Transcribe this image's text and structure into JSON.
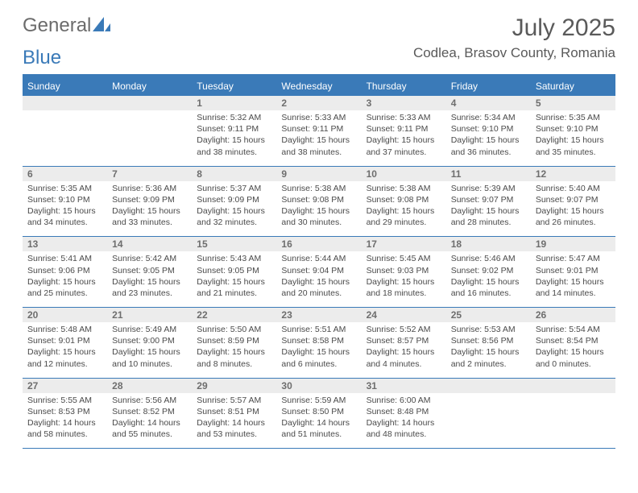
{
  "brand": {
    "word1": "General",
    "word2": "Blue"
  },
  "title": "July 2025",
  "location": "Codlea, Brasov County, Romania",
  "colors": {
    "accent": "#3a7ab8",
    "dayBg": "#ececec",
    "text": "#4a4a4a",
    "titleText": "#5a5a5a"
  },
  "dayNames": [
    "Sunday",
    "Monday",
    "Tuesday",
    "Wednesday",
    "Thursday",
    "Friday",
    "Saturday"
  ],
  "weeks": [
    [
      null,
      null,
      {
        "n": "1",
        "sr": "Sunrise: 5:32 AM",
        "ss": "Sunset: 9:11 PM",
        "dl": "Daylight: 15 hours and 38 minutes."
      },
      {
        "n": "2",
        "sr": "Sunrise: 5:33 AM",
        "ss": "Sunset: 9:11 PM",
        "dl": "Daylight: 15 hours and 38 minutes."
      },
      {
        "n": "3",
        "sr": "Sunrise: 5:33 AM",
        "ss": "Sunset: 9:11 PM",
        "dl": "Daylight: 15 hours and 37 minutes."
      },
      {
        "n": "4",
        "sr": "Sunrise: 5:34 AM",
        "ss": "Sunset: 9:10 PM",
        "dl": "Daylight: 15 hours and 36 minutes."
      },
      {
        "n": "5",
        "sr": "Sunrise: 5:35 AM",
        "ss": "Sunset: 9:10 PM",
        "dl": "Daylight: 15 hours and 35 minutes."
      }
    ],
    [
      {
        "n": "6",
        "sr": "Sunrise: 5:35 AM",
        "ss": "Sunset: 9:10 PM",
        "dl": "Daylight: 15 hours and 34 minutes."
      },
      {
        "n": "7",
        "sr": "Sunrise: 5:36 AM",
        "ss": "Sunset: 9:09 PM",
        "dl": "Daylight: 15 hours and 33 minutes."
      },
      {
        "n": "8",
        "sr": "Sunrise: 5:37 AM",
        "ss": "Sunset: 9:09 PM",
        "dl": "Daylight: 15 hours and 32 minutes."
      },
      {
        "n": "9",
        "sr": "Sunrise: 5:38 AM",
        "ss": "Sunset: 9:08 PM",
        "dl": "Daylight: 15 hours and 30 minutes."
      },
      {
        "n": "10",
        "sr": "Sunrise: 5:38 AM",
        "ss": "Sunset: 9:08 PM",
        "dl": "Daylight: 15 hours and 29 minutes."
      },
      {
        "n": "11",
        "sr": "Sunrise: 5:39 AM",
        "ss": "Sunset: 9:07 PM",
        "dl": "Daylight: 15 hours and 28 minutes."
      },
      {
        "n": "12",
        "sr": "Sunrise: 5:40 AM",
        "ss": "Sunset: 9:07 PM",
        "dl": "Daylight: 15 hours and 26 minutes."
      }
    ],
    [
      {
        "n": "13",
        "sr": "Sunrise: 5:41 AM",
        "ss": "Sunset: 9:06 PM",
        "dl": "Daylight: 15 hours and 25 minutes."
      },
      {
        "n": "14",
        "sr": "Sunrise: 5:42 AM",
        "ss": "Sunset: 9:05 PM",
        "dl": "Daylight: 15 hours and 23 minutes."
      },
      {
        "n": "15",
        "sr": "Sunrise: 5:43 AM",
        "ss": "Sunset: 9:05 PM",
        "dl": "Daylight: 15 hours and 21 minutes."
      },
      {
        "n": "16",
        "sr": "Sunrise: 5:44 AM",
        "ss": "Sunset: 9:04 PM",
        "dl": "Daylight: 15 hours and 20 minutes."
      },
      {
        "n": "17",
        "sr": "Sunrise: 5:45 AM",
        "ss": "Sunset: 9:03 PM",
        "dl": "Daylight: 15 hours and 18 minutes."
      },
      {
        "n": "18",
        "sr": "Sunrise: 5:46 AM",
        "ss": "Sunset: 9:02 PM",
        "dl": "Daylight: 15 hours and 16 minutes."
      },
      {
        "n": "19",
        "sr": "Sunrise: 5:47 AM",
        "ss": "Sunset: 9:01 PM",
        "dl": "Daylight: 15 hours and 14 minutes."
      }
    ],
    [
      {
        "n": "20",
        "sr": "Sunrise: 5:48 AM",
        "ss": "Sunset: 9:01 PM",
        "dl": "Daylight: 15 hours and 12 minutes."
      },
      {
        "n": "21",
        "sr": "Sunrise: 5:49 AM",
        "ss": "Sunset: 9:00 PM",
        "dl": "Daylight: 15 hours and 10 minutes."
      },
      {
        "n": "22",
        "sr": "Sunrise: 5:50 AM",
        "ss": "Sunset: 8:59 PM",
        "dl": "Daylight: 15 hours and 8 minutes."
      },
      {
        "n": "23",
        "sr": "Sunrise: 5:51 AM",
        "ss": "Sunset: 8:58 PM",
        "dl": "Daylight: 15 hours and 6 minutes."
      },
      {
        "n": "24",
        "sr": "Sunrise: 5:52 AM",
        "ss": "Sunset: 8:57 PM",
        "dl": "Daylight: 15 hours and 4 minutes."
      },
      {
        "n": "25",
        "sr": "Sunrise: 5:53 AM",
        "ss": "Sunset: 8:56 PM",
        "dl": "Daylight: 15 hours and 2 minutes."
      },
      {
        "n": "26",
        "sr": "Sunrise: 5:54 AM",
        "ss": "Sunset: 8:54 PM",
        "dl": "Daylight: 15 hours and 0 minutes."
      }
    ],
    [
      {
        "n": "27",
        "sr": "Sunrise: 5:55 AM",
        "ss": "Sunset: 8:53 PM",
        "dl": "Daylight: 14 hours and 58 minutes."
      },
      {
        "n": "28",
        "sr": "Sunrise: 5:56 AM",
        "ss": "Sunset: 8:52 PM",
        "dl": "Daylight: 14 hours and 55 minutes."
      },
      {
        "n": "29",
        "sr": "Sunrise: 5:57 AM",
        "ss": "Sunset: 8:51 PM",
        "dl": "Daylight: 14 hours and 53 minutes."
      },
      {
        "n": "30",
        "sr": "Sunrise: 5:59 AM",
        "ss": "Sunset: 8:50 PM",
        "dl": "Daylight: 14 hours and 51 minutes."
      },
      {
        "n": "31",
        "sr": "Sunrise: 6:00 AM",
        "ss": "Sunset: 8:48 PM",
        "dl": "Daylight: 14 hours and 48 minutes."
      },
      null,
      null
    ]
  ]
}
